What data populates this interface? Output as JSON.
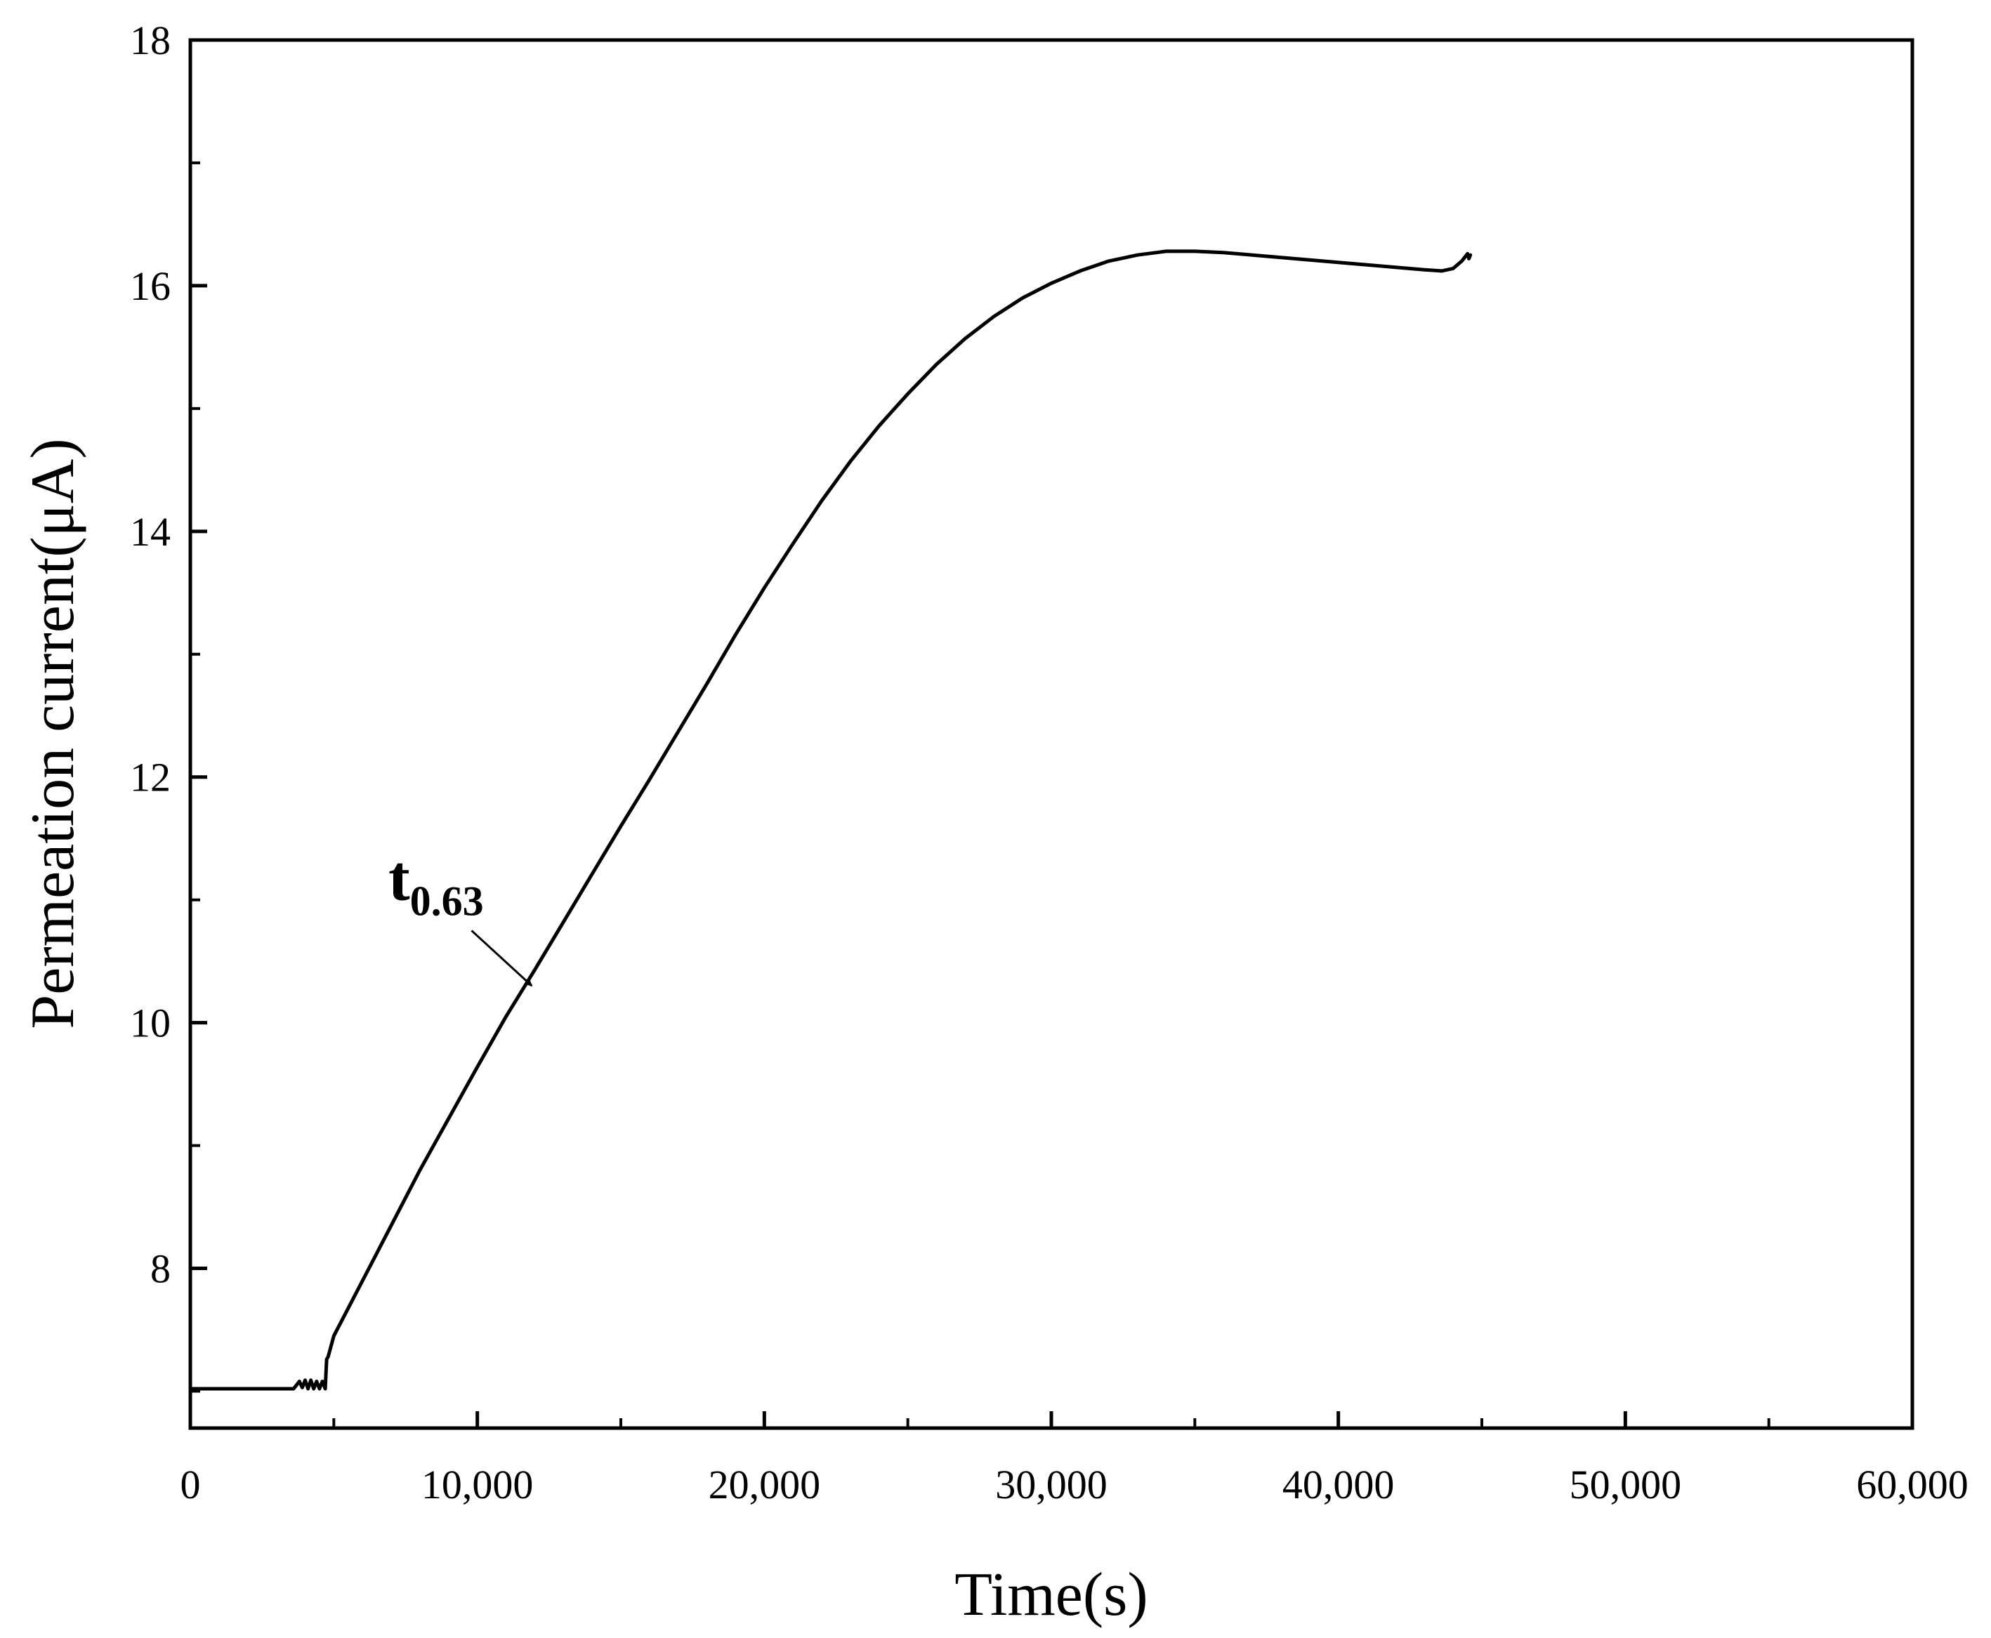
{
  "chart_data": {
    "type": "line",
    "xlabel": "Time(s)",
    "ylabel": "Permeation current(μA)",
    "xlim": [
      0,
      60000
    ],
    "ylim": [
      6.7,
      18
    ],
    "x_ticks": [
      0,
      10000,
      20000,
      30000,
      40000,
      50000,
      60000
    ],
    "x_tick_labels": [
      "0",
      "10,000",
      "20,000",
      "30,000",
      "40,000",
      "50,000",
      "60,000"
    ],
    "x_minor_ticks": [
      5000,
      15000,
      25000,
      35000,
      45000,
      55000
    ],
    "y_ticks": [
      8,
      10,
      12,
      14,
      16,
      18
    ],
    "y_tick_labels": [
      "8",
      "10",
      "12",
      "14",
      "16",
      "18"
    ],
    "y_minor_ticks": [
      7,
      9,
      11,
      13,
      15,
      17
    ],
    "grid": false,
    "legend": "none",
    "series": [
      {
        "color": "#000000",
        "x": [
          0,
          1000,
          2000,
          3000,
          3600,
          3800,
          3900,
          4000,
          4100,
          4200,
          4300,
          4400,
          4500,
          4600,
          4700,
          4750,
          4800,
          5000,
          6000,
          7000,
          8000,
          9000,
          10000,
          11000,
          12000,
          13000,
          14000,
          15000,
          16000,
          17000,
          18000,
          19000,
          20000,
          21000,
          22000,
          23000,
          24000,
          25000,
          26000,
          27000,
          28000,
          29000,
          30000,
          31000,
          32000,
          33000,
          34000,
          35000,
          36000,
          37000,
          38000,
          39000,
          40000,
          41000,
          42000,
          43000,
          43600,
          44000,
          44300,
          44500,
          44550,
          44600
        ],
        "y": [
          7.02,
          7.02,
          7.02,
          7.02,
          7.02,
          7.08,
          7.03,
          7.09,
          7.02,
          7.09,
          7.02,
          7.08,
          7.02,
          7.08,
          7.02,
          7.26,
          7.28,
          7.45,
          7.9,
          8.35,
          8.8,
          9.22,
          9.64,
          10.05,
          10.43,
          10.82,
          11.21,
          11.6,
          11.98,
          12.37,
          12.76,
          13.16,
          13.54,
          13.9,
          14.25,
          14.57,
          14.86,
          15.12,
          15.36,
          15.57,
          15.75,
          15.9,
          16.02,
          16.12,
          16.2,
          16.25,
          16.28,
          16.28,
          16.27,
          16.25,
          16.23,
          16.21,
          16.19,
          16.17,
          16.15,
          16.13,
          16.12,
          16.14,
          16.2,
          16.26,
          16.22,
          16.25
        ]
      }
    ],
    "annotation": {
      "text_main": "t",
      "text_sub": "0.63",
      "text_x": 6900,
      "text_y": 11.0,
      "arrow_from": [
        9800,
        10.75
      ],
      "arrow_to": [
        11900,
        10.3
      ]
    }
  }
}
